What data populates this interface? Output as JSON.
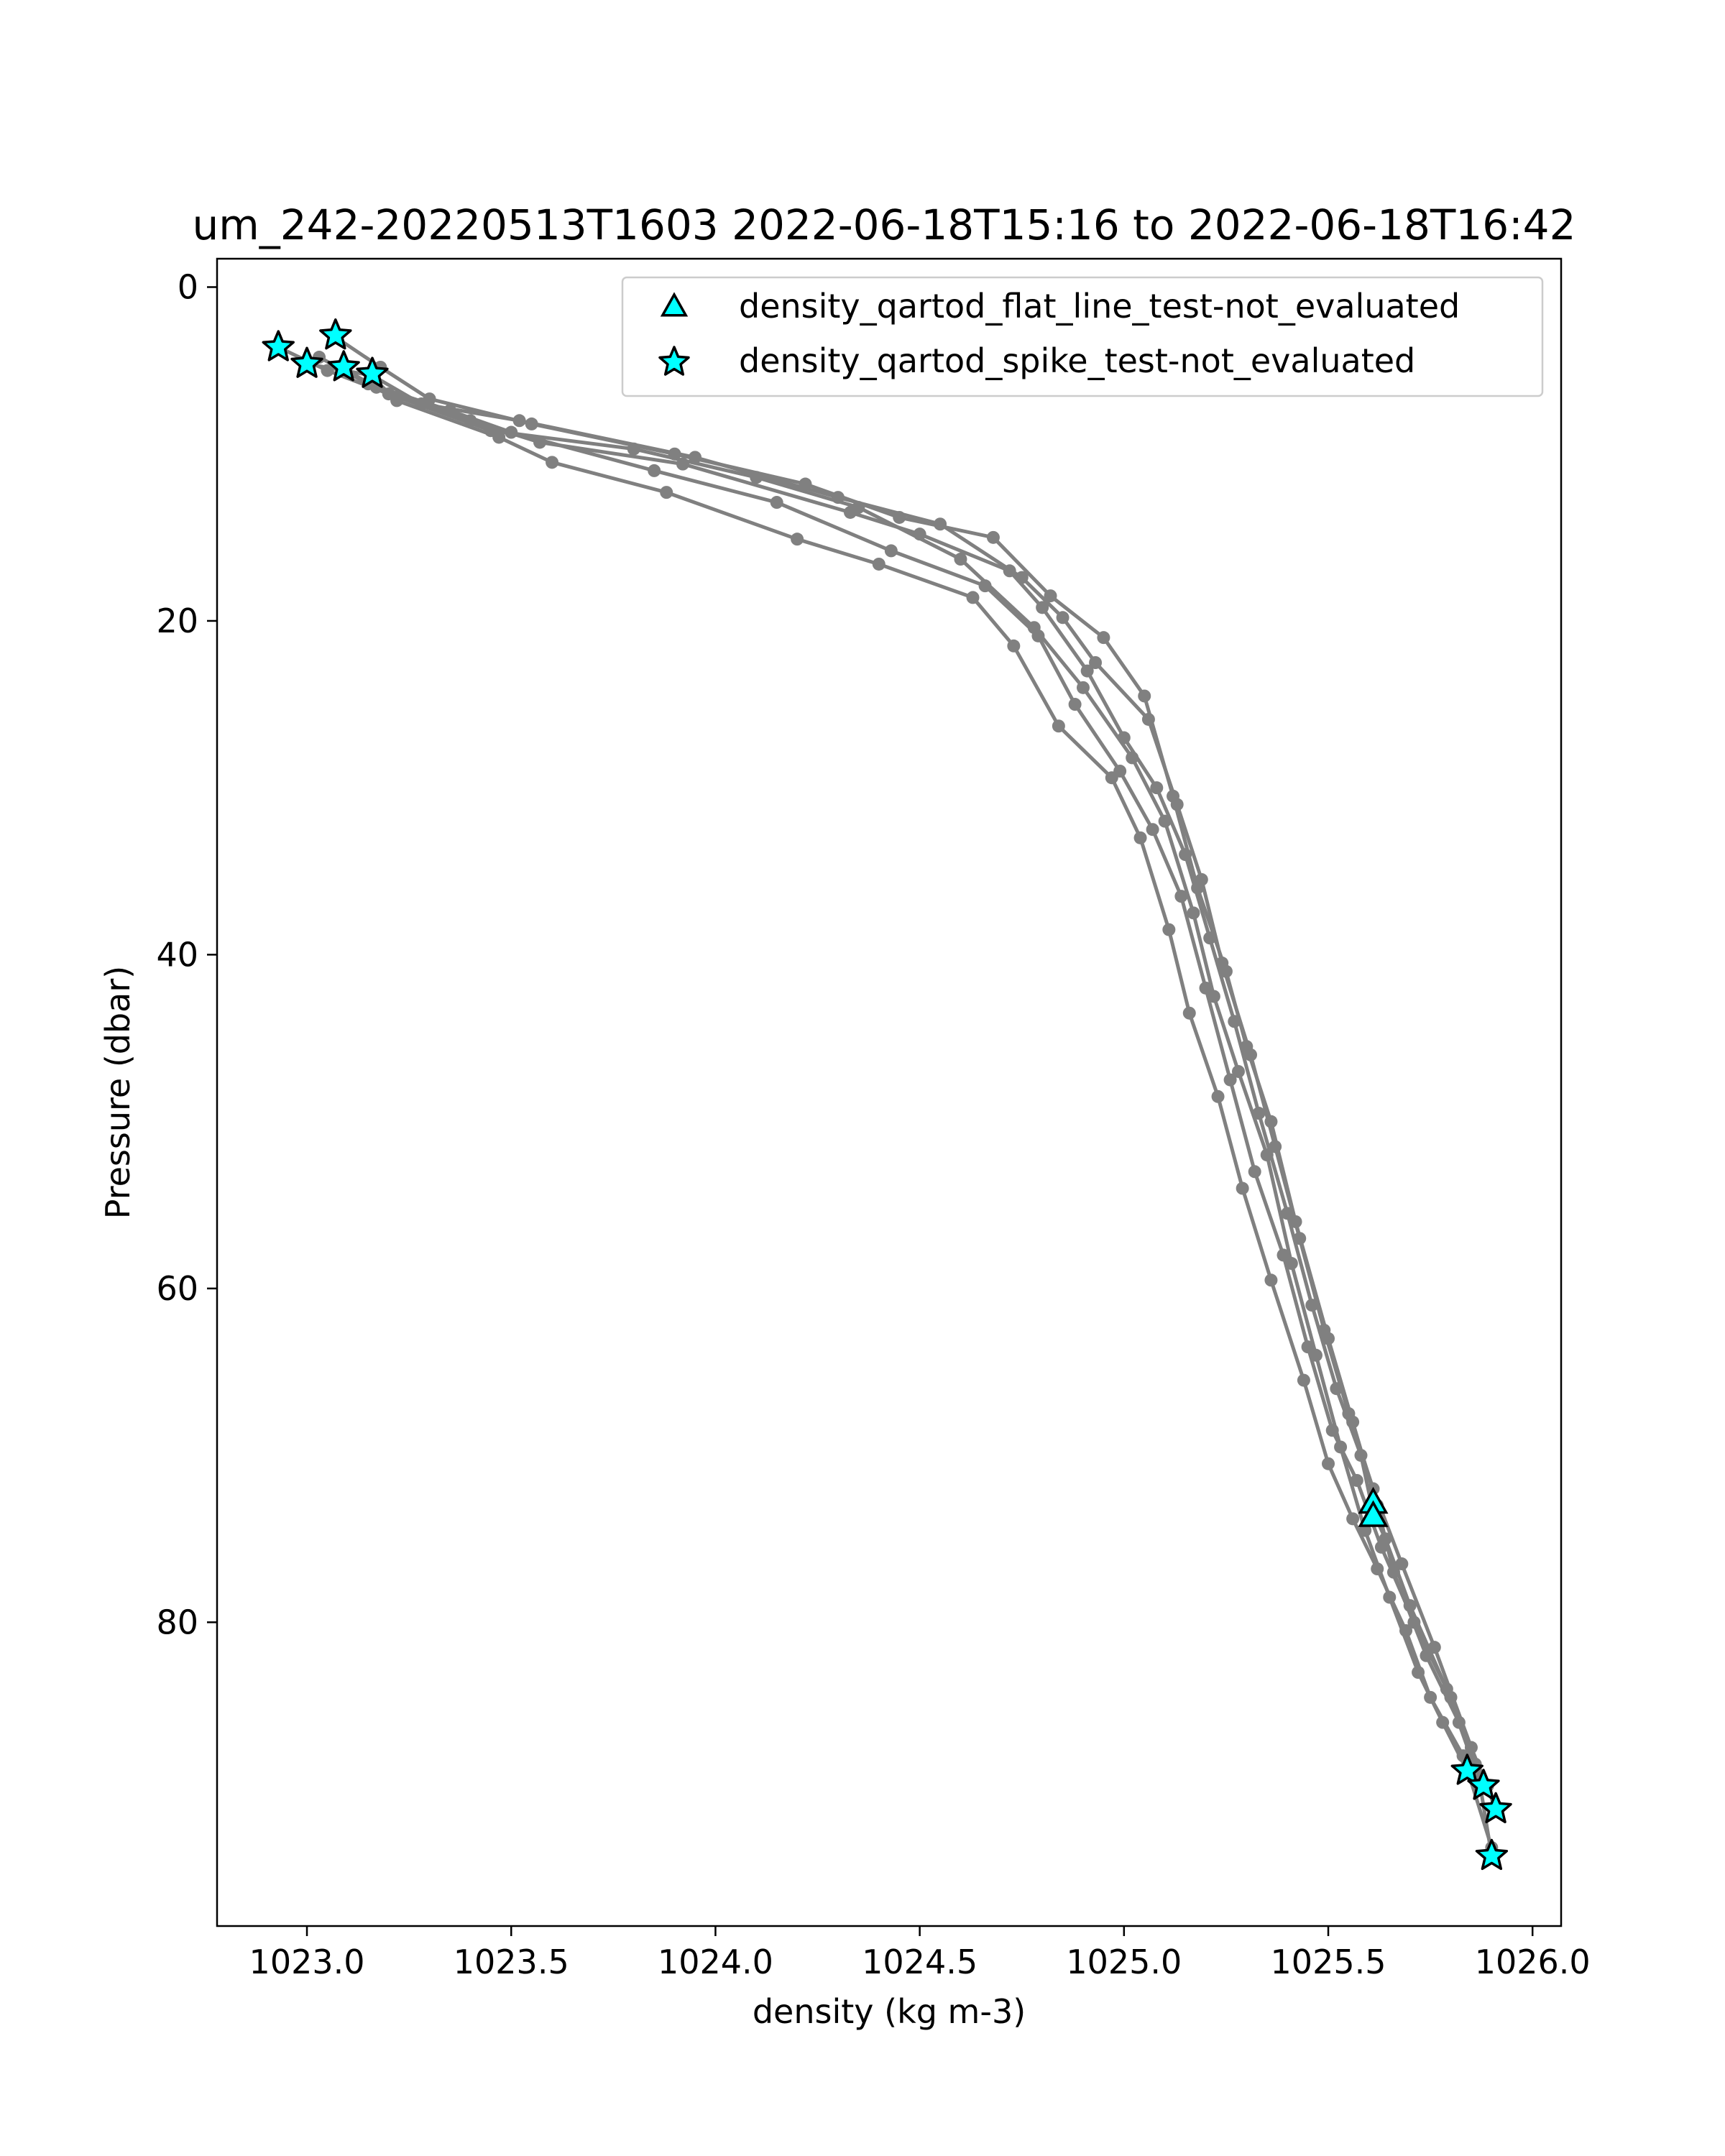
{
  "chart_data": {
    "type": "line",
    "title": "um_242-20220513T1603 2022-06-18T15:16 to 2022-06-18T16:42",
    "xlabel": "density (kg m-3)",
    "ylabel": "Pressure (dbar)",
    "xlim": [
      1022.78,
      1026.07
    ],
    "ylim": [
      98.2,
      -1.7
    ],
    "y_inverted": true,
    "grid": false,
    "legend_position": "top-right",
    "x_ticks": [
      1023.0,
      1023.5,
      1024.0,
      1024.5,
      1025.0,
      1025.5,
      1026.0
    ],
    "x_tick_labels": [
      "1023.0",
      "1023.5",
      "1024.0",
      "1024.5",
      "1025.0",
      "1025.5",
      "1026.0"
    ],
    "y_ticks": [
      0,
      20,
      40,
      60,
      80
    ],
    "y_tick_labels": [
      "0",
      "20",
      "40",
      "60",
      "80"
    ],
    "colors": {
      "profile": "#808080",
      "flag": "#00ffff",
      "flag_edge": "#000000"
    },
    "profiles": [
      {
        "x": [
          1023.07,
          1023.18,
          1023.3,
          1023.55,
          1023.9,
          1024.22,
          1024.45,
          1024.68,
          1024.82,
          1024.95,
          1025.05,
          1025.12,
          1025.18,
          1025.25,
          1025.3,
          1025.36,
          1025.42,
          1025.5,
          1025.56,
          1025.62,
          1025.66,
          1025.74,
          1025.82,
          1025.86,
          1025.89
        ],
        "y": [
          3.0,
          4.8,
          6.7,
          8.2,
          10.0,
          11.8,
          13.8,
          15.0,
          18.5,
          21.0,
          24.5,
          30.5,
          36.0,
          41.0,
          45.5,
          50.0,
          56.0,
          63.0,
          68.0,
          73.0,
          77.0,
          82.0,
          86.0,
          88.5,
          89.8
        ]
      },
      {
        "x": [
          1022.93,
          1023.05,
          1023.2,
          1023.45,
          1023.8,
          1024.1,
          1024.35,
          1024.6,
          1024.78,
          1024.9,
          1025.02,
          1025.1,
          1025.17,
          1025.22,
          1025.28,
          1025.35,
          1025.41,
          1025.47,
          1025.53,
          1025.59,
          1025.65,
          1025.72,
          1025.78,
          1025.84,
          1025.88
        ],
        "y": [
          3.6,
          5.0,
          6.4,
          8.6,
          9.7,
          11.4,
          13.2,
          16.3,
          20.4,
          24.0,
          28.2,
          32.0,
          37.5,
          42.5,
          47.0,
          52.0,
          58.5,
          64.0,
          69.5,
          74.5,
          78.5,
          83.0,
          86.0,
          88.9,
          89.8
        ]
      },
      {
        "x": [
          1023.0,
          1023.16,
          1023.28,
          1023.52,
          1023.95,
          1024.3,
          1024.55,
          1024.75,
          1024.85,
          1024.93,
          1025.06,
          1025.13,
          1025.19,
          1025.24,
          1025.31,
          1025.37,
          1025.43,
          1025.49,
          1025.55,
          1025.61,
          1025.68,
          1025.76,
          1025.85,
          1025.91
        ],
        "y": [
          4.6,
          5.3,
          7.0,
          8.0,
          10.2,
          12.6,
          14.2,
          17.4,
          19.8,
          22.5,
          25.9,
          31.0,
          35.5,
          40.5,
          46.0,
          51.5,
          57.0,
          62.5,
          67.5,
          72.0,
          76.5,
          81.5,
          87.5,
          91.2
        ]
      },
      {
        "x": [
          1023.09,
          1023.17,
          1023.4,
          1023.57,
          1023.92,
          1024.33,
          1024.5,
          1024.72,
          1024.8,
          1024.91,
          1025.0,
          1025.08,
          1025.15,
          1025.21,
          1025.27,
          1025.33,
          1025.4,
          1025.46,
          1025.52,
          1025.58,
          1025.61,
          1025.64,
          1025.7,
          1025.79,
          1025.87,
          1025.9
        ],
        "y": [
          4.9,
          6.0,
          8.0,
          9.3,
          10.6,
          13.5,
          14.8,
          17.0,
          19.2,
          23.0,
          27.0,
          30.0,
          34.0,
          39.0,
          44.0,
          49.5,
          55.5,
          61.0,
          66.0,
          70.0,
          73.4,
          75.0,
          79.0,
          84.0,
          89.5,
          94.0
        ]
      },
      {
        "x": [
          1023.16,
          1023.22,
          1023.47,
          1023.6,
          1023.88,
          1024.2,
          1024.4,
          1024.63,
          1024.73,
          1024.84,
          1024.97,
          1025.04,
          1025.11,
          1025.16,
          1025.23,
          1025.29,
          1025.36,
          1025.44,
          1025.5,
          1025.56,
          1025.62,
          1025.69,
          1025.75,
          1025.83,
          1025.9
        ],
        "y": [
          5.4,
          6.8,
          9.0,
          10.5,
          12.3,
          15.1,
          16.6,
          18.6,
          21.5,
          26.3,
          29.4,
          33.0,
          38.5,
          43.5,
          48.5,
          54.0,
          59.5,
          65.5,
          70.5,
          73.8,
          76.8,
          80.5,
          84.5,
          88.0,
          93.5
        ]
      },
      {
        "x": [
          1023.03,
          1023.15,
          1023.35,
          1023.5,
          1023.85,
          1024.15,
          1024.43,
          1024.66,
          1024.79,
          1024.88,
          1024.99,
          1025.07,
          1025.14,
          1025.2,
          1025.26,
          1025.32,
          1025.39,
          1025.45,
          1025.51,
          1025.57,
          1025.63,
          1025.71,
          1025.8,
          1025.86
        ],
        "y": [
          4.2,
          5.8,
          7.4,
          8.7,
          11.0,
          12.9,
          15.8,
          17.9,
          20.9,
          25.0,
          29.0,
          32.5,
          36.5,
          42.0,
          47.5,
          53.0,
          58.0,
          63.5,
          68.5,
          71.5,
          75.5,
          80.0,
          84.5,
          88.8
        ]
      }
    ],
    "flat_line_flags": {
      "name": "density_qartod_flat_line_test-not_evaluated",
      "x": [
        1025.61,
        1025.61
      ],
      "y": [
        72.9,
        73.7
      ]
    },
    "spike_flags": {
      "name": "density_qartod_spike_test-not_evaluated",
      "x": [
        1023.07,
        1022.93,
        1023.0,
        1023.09,
        1023.16,
        1025.84,
        1025.88,
        1025.91,
        1025.9
      ],
      "y": [
        2.9,
        3.6,
        4.6,
        4.8,
        5.2,
        88.9,
        89.8,
        91.2,
        94.0
      ]
    }
  }
}
